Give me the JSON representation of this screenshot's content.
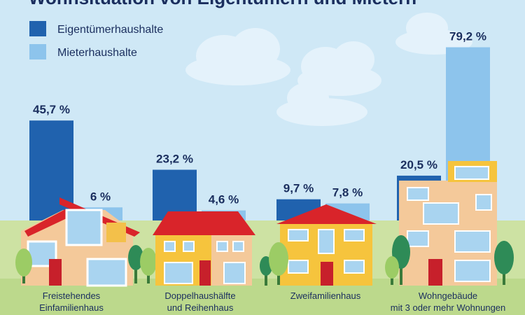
{
  "chart_data": {
    "type": "bar",
    "title": "Wohnsituation von Eigentümern und Mietern",
    "categories": [
      [
        "Freistehendes",
        "Einfamilienhaus"
      ],
      [
        "Doppelhaushälfte",
        "und Reihenhaus"
      ],
      [
        "Zweifamilienhaus"
      ],
      [
        "Wohngebäude",
        "mit 3 oder mehr Wohnungen"
      ]
    ],
    "series": [
      {
        "name": "Eigentümerhaushalte",
        "color": "#2062ae",
        "values": [
          45.7,
          23.2,
          9.7,
          20.5
        ],
        "labels": [
          "45,7 %",
          "23,2 %",
          "9,7 %",
          "20,5 %"
        ]
      },
      {
        "name": "Mieterhaushalte",
        "color": "#8dc4ec",
        "values": [
          6,
          4.6,
          7.8,
          79.2
        ],
        "labels": [
          "6 %",
          "4,6 %",
          "7,8 %",
          "79,2 %"
        ]
      }
    ],
    "ylim": [
      0,
      80
    ],
    "legend": "top-left"
  }
}
